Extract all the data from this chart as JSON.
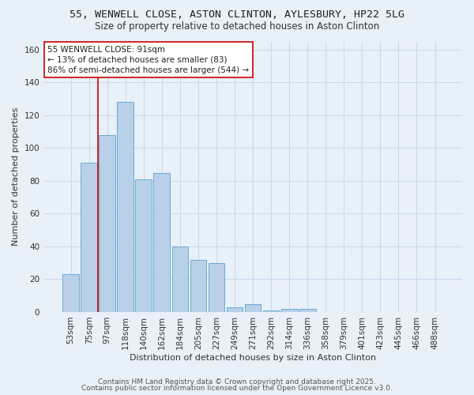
{
  "title_line1": "55, WENWELL CLOSE, ASTON CLINTON, AYLESBURY, HP22 5LG",
  "title_line2": "Size of property relative to detached houses in Aston Clinton",
  "xlabel": "Distribution of detached houses by size in Aston Clinton",
  "ylabel": "Number of detached properties",
  "categories": [
    "53sqm",
    "75sqm",
    "97sqm",
    "118sqm",
    "140sqm",
    "162sqm",
    "184sqm",
    "205sqm",
    "227sqm",
    "249sqm",
    "271sqm",
    "292sqm",
    "314sqm",
    "336sqm",
    "358sqm",
    "379sqm",
    "401sqm",
    "423sqm",
    "445sqm",
    "466sqm",
    "488sqm"
  ],
  "values": [
    23,
    91,
    108,
    128,
    81,
    85,
    40,
    32,
    30,
    3,
    5,
    1,
    2,
    2,
    0,
    0,
    0,
    0,
    0,
    0,
    0
  ],
  "bar_color": "#b8d0e8",
  "bar_edgecolor": "#6aaad4",
  "marker_label_line1": "55 WENWELL CLOSE: 91sqm",
  "marker_label_line2": "← 13% of detached houses are smaller (83)",
  "marker_label_line3": "86% of semi-detached houses are larger (544) →",
  "annotation_box_color": "#ffffff",
  "annotation_box_edgecolor": "#cc0000",
  "vline_color": "#cc0000",
  "grid_color": "#c8d8ea",
  "background_color": "#e8f0f8",
  "ylim": [
    0,
    165
  ],
  "yticks": [
    0,
    20,
    40,
    60,
    80,
    100,
    120,
    140,
    160
  ],
  "footer_line1": "Contains HM Land Registry data © Crown copyright and database right 2025.",
  "footer_line2": "Contains public sector information licensed under the Open Government Licence v3.0.",
  "title_fontsize": 9.5,
  "subtitle_fontsize": 8.5,
  "axis_label_fontsize": 8,
  "tick_fontsize": 7.5,
  "annotation_fontsize": 7.5,
  "footer_fontsize": 6.5
}
